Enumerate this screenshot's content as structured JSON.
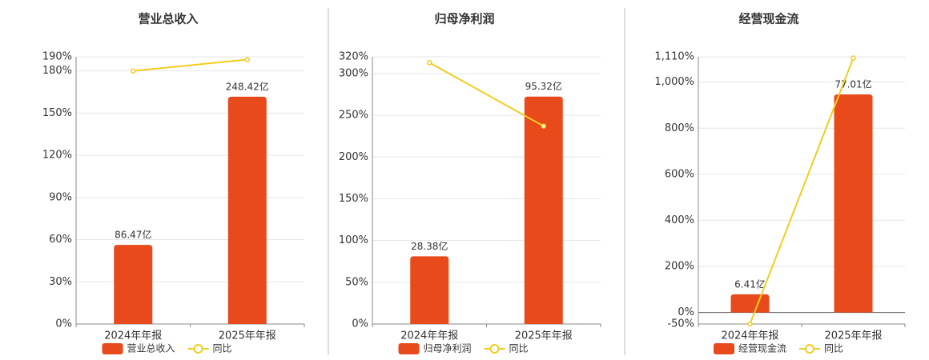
{
  "chart_data": [
    {
      "type": "bar",
      "title": "营业总收入",
      "categories": [
        "2024年年报",
        "2025年年报"
      ],
      "series": [
        {
          "name": "营业总收入",
          "color": "#e84a1b",
          "axis": "y2",
          "values": [
            86.47,
            248.42
          ],
          "value_labels": [
            "86.47亿",
            "248.42亿"
          ]
        },
        {
          "name": "同比",
          "color": "#f2cd1e",
          "type": "line",
          "values": [
            180,
            188
          ]
        }
      ],
      "ylim": [
        0,
        190
      ],
      "yticks": [
        {
          "value": 0,
          "label": "0%"
        },
        {
          "value": 30,
          "label": "30%"
        },
        {
          "value": 60,
          "label": "60%"
        },
        {
          "value": 90,
          "label": "90%"
        },
        {
          "value": 120,
          "label": "120%"
        },
        {
          "value": 150,
          "label": "150%"
        },
        {
          "value": 180,
          "label": "180%"
        },
        {
          "value": 190,
          "label": "190%"
        }
      ],
      "y2lim": [
        0,
        292
      ],
      "grid": true,
      "legend": "bottom"
    },
    {
      "type": "bar",
      "title": "归母净利润",
      "categories": [
        "2024年年报",
        "2025年年报"
      ],
      "series": [
        {
          "name": "归母净利润",
          "color": "#e84a1b",
          "axis": "y2",
          "values": [
            28.38,
            95.32
          ],
          "value_labels": [
            "28.38亿",
            "95.32亿"
          ]
        },
        {
          "name": "同比",
          "color": "#f2cd1e",
          "type": "line",
          "values": [
            313,
            237
          ]
        }
      ],
      "ylim": [
        0,
        320
      ],
      "yticks": [
        {
          "value": 0,
          "label": "0%"
        },
        {
          "value": 50,
          "label": "50%"
        },
        {
          "value": 100,
          "label": "100%"
        },
        {
          "value": 150,
          "label": "150%"
        },
        {
          "value": 200,
          "label": "200%"
        },
        {
          "value": 250,
          "label": "250%"
        },
        {
          "value": 300,
          "label": "300%"
        },
        {
          "value": 320,
          "label": "320%"
        }
      ],
      "y2lim": [
        0,
        112
      ],
      "grid": true,
      "legend": "bottom"
    },
    {
      "type": "bar",
      "title": "经营现金流",
      "categories": [
        "2024年年报",
        "2025年年报"
      ],
      "series": [
        {
          "name": "经营现金流",
          "color": "#e84a1b",
          "axis": "y2",
          "values": [
            6.41,
            77.01
          ],
          "value_labels": [
            "6.41亿",
            "77.01亿"
          ]
        },
        {
          "name": "同比",
          "color": "#f2cd1e",
          "type": "line",
          "values": [
            -50,
            1105
          ]
        }
      ],
      "ylim": [
        -50,
        1110
      ],
      "yticks": [
        {
          "value": -50,
          "label": "-50%"
        },
        {
          "value": 0,
          "label": "0%"
        },
        {
          "value": 200,
          "label": "200%"
        },
        {
          "value": 400,
          "label": "400%"
        },
        {
          "value": 600,
          "label": "600%"
        },
        {
          "value": 800,
          "label": "800%"
        },
        {
          "value": 1000,
          "label": "1,000%"
        },
        {
          "value": 1110,
          "label": "1,110%"
        }
      ],
      "y2lim": [
        -4.07,
        90.3
      ],
      "grid": true,
      "legend": "bottom"
    }
  ]
}
